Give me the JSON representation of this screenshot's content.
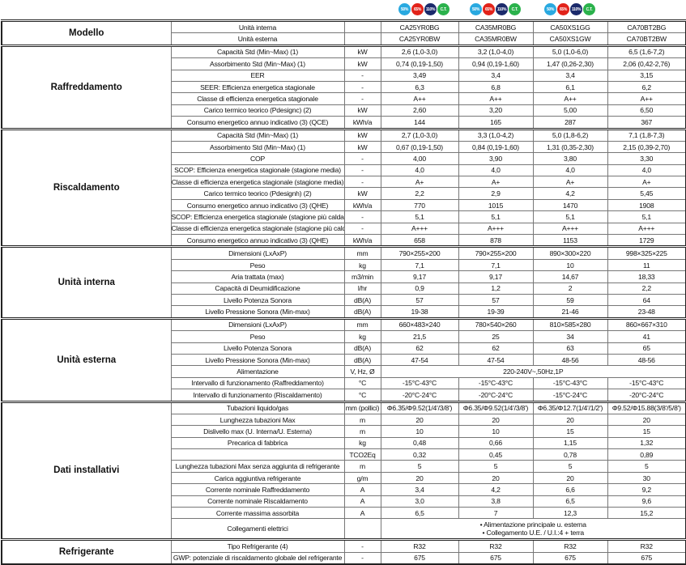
{
  "badges": [
    {
      "label": "50%",
      "color": "#29a9e0"
    },
    {
      "label": "65%",
      "color": "#e2231a"
    },
    {
      "label": "110%",
      "color": "#1b2a6b"
    },
    {
      "label": "C.T.",
      "color": "#2bb24c"
    }
  ],
  "sections": [
    {
      "group": "Modello",
      "rows": [
        {
          "label": "Unità interna",
          "unit": "",
          "values": [
            "CA25YR0BG",
            "CA35MR0BG",
            "CA50XS1GG",
            "CA70BT2BG"
          ]
        },
        {
          "label": "Unità esterna",
          "unit": "",
          "values": [
            "CA25YR0BW",
            "CA35MR0BW",
            "CA50XS1GW",
            "CA70BT2BW"
          ]
        }
      ]
    },
    {
      "group": "Raffreddamento",
      "rows": [
        {
          "label": "Capacità Std (Min~Max) (1)",
          "unit": "kW",
          "values": [
            "2,6 (1,0-3,0)",
            "3,2 (1,0-4,0)",
            "5,0 (1,0-6,0)",
            "6,5 (1,6-7,2)"
          ]
        },
        {
          "label": "Assorbimento Std (Min~Max) (1)",
          "unit": "kW",
          "values": [
            "0,74 (0,19-1,50)",
            "0,94 (0,19-1,60)",
            "1,47 (0,26-2,30)",
            "2,06 (0,42-2,76)"
          ]
        },
        {
          "label": "EER",
          "unit": "-",
          "values": [
            "3,49",
            "3,4",
            "3,4",
            "3,15"
          ]
        },
        {
          "label": "SEER: Efficienza energetica stagionale",
          "unit": "-",
          "values": [
            "6,3",
            "6,8",
            "6,1",
            "6,2"
          ]
        },
        {
          "label": "Classe di efficienza energetica stagionale",
          "unit": "-",
          "values": [
            "A++",
            "A++",
            "A++",
            "A++"
          ]
        },
        {
          "label": "Carico termico teorico (Pdesignc) (2)",
          "unit": "kW",
          "values": [
            "2,60",
            "3,20",
            "5,00",
            "6,50"
          ]
        },
        {
          "label": "Consumo energetico annuo indicativo (3) (QCE)",
          "unit": "kWh/a",
          "values": [
            "144",
            "165",
            "287",
            "367"
          ]
        }
      ]
    },
    {
      "group": "Riscaldamento",
      "rows": [
        {
          "label": "Capacità Std (Min~Max) (1)",
          "unit": "kW",
          "values": [
            "2,7 (1,0-3,0)",
            "3,3 (1,0-4,2)",
            "5,0 (1,8-6,2)",
            "7,1 (1,8-7,3)"
          ]
        },
        {
          "label": "Assorbimento Std (Min~Max) (1)",
          "unit": "kW",
          "values": [
            "0,67 (0,19-1,50)",
            "0,84 (0,19-1,60)",
            "1,31 (0,35-2,30)",
            "2,15 (0,39-2,70)"
          ]
        },
        {
          "label": "COP",
          "unit": "-",
          "values": [
            "4,00",
            "3,90",
            "3,80",
            "3,30"
          ]
        },
        {
          "label": "SCOP: Efficienza energetica stagionale (stagione media)",
          "unit": "-",
          "values": [
            "4,0",
            "4,0",
            "4,0",
            "4,0"
          ]
        },
        {
          "label": "Classe di efficienza energetica stagionale (stagione media)",
          "unit": "-",
          "values": [
            "A+",
            "A+",
            "A+",
            "A+"
          ]
        },
        {
          "label": "Carico termico teorico (Pdesignh) (2)",
          "unit": "kW",
          "values": [
            "2,2",
            "2,9",
            "4,2",
            "5,45"
          ]
        },
        {
          "label": "Consumo energetico annuo indicativo (3) (QHE)",
          "unit": "kWh/a",
          "values": [
            "770",
            "1015",
            "1470",
            "1908"
          ]
        },
        {
          "label": "SCOP: Efficienza energetica stagionale (stagione più calda)",
          "unit": "-",
          "values": [
            "5,1",
            "5,1",
            "5,1",
            "5,1"
          ]
        },
        {
          "label": "Classe di efficienza energetica stagionale (stagione più calda)",
          "unit": "-",
          "values": [
            "A+++",
            "A+++",
            "A+++",
            "A+++"
          ]
        },
        {
          "label": "Consumo energetico annuo indicativo (3) (QHE)",
          "unit": "kWh/a",
          "values": [
            "658",
            "878",
            "1153",
            "1729"
          ]
        }
      ]
    },
    {
      "group": "Unità interna",
      "rows": [
        {
          "label": "Dimensioni (LxAxP)",
          "unit": "mm",
          "values": [
            "790×255×200",
            "790×255×200",
            "890×300×220",
            "998×325×225"
          ]
        },
        {
          "label": "Peso",
          "unit": "kg",
          "values": [
            "7,1",
            "7,1",
            "10",
            "11"
          ]
        },
        {
          "label": "Aria trattata (max)",
          "unit": "m3/min",
          "values": [
            "9,17",
            "9,17",
            "14,67",
            "18,33"
          ]
        },
        {
          "label": "Capacità di Deumidificazione",
          "unit": "l/hr",
          "values": [
            "0,9",
            "1,2",
            "2",
            "2,2"
          ]
        },
        {
          "label": "Livello Potenza Sonora",
          "unit": "dB(A)",
          "values": [
            "57",
            "57",
            "59",
            "64"
          ]
        },
        {
          "label": "Livello Pressione Sonora (Min-max)",
          "unit": "dB(A)",
          "values": [
            "19-38",
            "19-39",
            "21-46",
            "23-48"
          ]
        }
      ]
    },
    {
      "group": "Unità esterna",
      "rows": [
        {
          "label": "Dimensioni (LxAxP)",
          "unit": "mm",
          "values": [
            "660×483×240",
            "780×540×260",
            "810×585×280",
            "860×667×310"
          ]
        },
        {
          "label": "Peso",
          "unit": "kg",
          "values": [
            "21,5",
            "25",
            "34",
            "41"
          ]
        },
        {
          "label": "Livello Potenza Sonora",
          "unit": "dB(A)",
          "values": [
            "62",
            "62",
            "63",
            "65"
          ]
        },
        {
          "label": "Livello Pressione Sonora (Min-max)",
          "unit": "dB(A)",
          "values": [
            "47-54",
            "47-54",
            "48-56",
            "48-56"
          ]
        },
        {
          "label": "Alimentazione",
          "unit": "V, Hz, Ø",
          "merged": "220-240V~,50Hz,1P"
        },
        {
          "label": "Intervallo di funzionamento (Raffreddamento)",
          "unit": "°C",
          "values": [
            "-15°C-43°C",
            "-15°C-43°C",
            "-15°C-43°C",
            "-15°C-43°C"
          ]
        },
        {
          "label": "Intervallo di funzionamento (Riscaldamento)",
          "unit": "°C",
          "values": [
            "-20°C-24°C",
            "-20°C-24°C",
            "-15°C-24°C",
            "-20°C-24°C"
          ]
        }
      ]
    },
    {
      "group": "Dati installativi",
      "rows": [
        {
          "label": "Tubazioni liquido/gas",
          "unit": "mm (pollici)",
          "values": [
            "Φ6.35/Φ9.52(1/4'/3/8')",
            "Φ6.35/Φ9.52(1/4'/3/8')",
            "Φ6.35/Φ12.7(1/4'/1/2')",
            "Φ9.52/Φ15.88(3/8'/5/8')"
          ]
        },
        {
          "label": "Lunghezza tubazioni Max",
          "unit": "m",
          "values": [
            "20",
            "20",
            "20",
            "20"
          ]
        },
        {
          "label": "Dislivello max (U. Interna/U. Esterna)",
          "unit": "m",
          "values": [
            "10",
            "10",
            "15",
            "15"
          ]
        },
        {
          "label": "Precarica di fabbrica",
          "unit": "kg",
          "values": [
            "0,48",
            "0,66",
            "1,15",
            "1,32"
          ]
        },
        {
          "label": "",
          "unit": "TCO2Eq",
          "values": [
            "0,32",
            "0,45",
            "0,78",
            "0,89"
          ]
        },
        {
          "label": "Lunghezza tubazioni Max senza aggiunta di refrigerante",
          "unit": "m",
          "values": [
            "5",
            "5",
            "5",
            "5"
          ]
        },
        {
          "label": "Carica aggiuntiva refrigerante",
          "unit": "g/m",
          "values": [
            "20",
            "20",
            "20",
            "30"
          ]
        },
        {
          "label": "Corrente nominale Raffreddamento",
          "unit": "A",
          "values": [
            "3,4",
            "4,2",
            "6,6",
            "9,2"
          ]
        },
        {
          "label": "Corrente nominale Riscaldamento",
          "unit": "A",
          "values": [
            "3,0",
            "3,8",
            "6,5",
            "9,6"
          ]
        },
        {
          "label": "Corrente massima assorbita",
          "unit": "A",
          "values": [
            "6,5",
            "7",
            "12,3",
            "15,2"
          ]
        },
        {
          "label": "Collegamenti elettrici",
          "unit": "",
          "merged_lines": [
            "• Alimentazione principale u. esterna",
            "• Collegamento U.E. / U.I.:4 + terra"
          ]
        }
      ]
    },
    {
      "group": "Refrigerante",
      "rows": [
        {
          "label": "Tipo Refrigerante (4)",
          "unit": "-",
          "values": [
            "R32",
            "R32",
            "R32",
            "R32"
          ]
        },
        {
          "label": "GWP: potenziale di riscaldamento globale del refrigerante",
          "unit": "-",
          "values": [
            "675",
            "675",
            "675",
            "675"
          ]
        }
      ]
    }
  ]
}
